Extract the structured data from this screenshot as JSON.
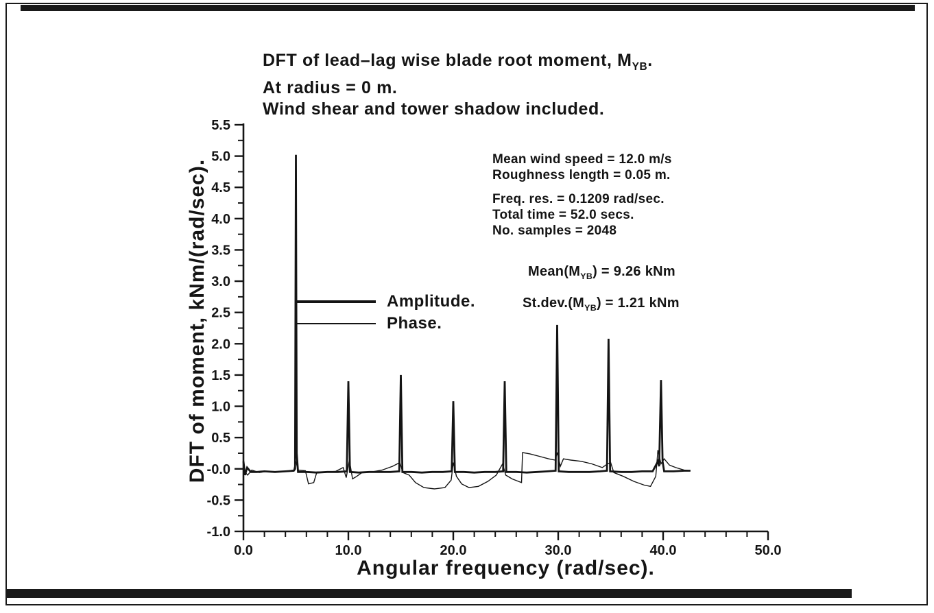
{
  "header": {
    "title_pre": "DFT of lead–lag wise blade root moment, M",
    "title_sub": "YB",
    "title_post": ".",
    "line2": "At radius = 0 m.",
    "line3": "Wind shear and tower shadow included."
  },
  "info": {
    "wind_speed": "Mean wind speed = 12.0 m/s",
    "roughness": "Roughness length = 0.05 m.",
    "freq_res": "Freq. res. = 0.1209 rad/sec.",
    "total_time": "Total time = 52.0 secs.",
    "samples": "No. samples = 2048"
  },
  "stats": {
    "mean_pre": "Mean(M",
    "mean_sub": "YB",
    "mean_post": ") = 9.26 kNm",
    "stdev_pre": "St.dev.(M",
    "stdev_sub": "YB",
    "stdev_post": ") = 1.21 kNm"
  },
  "chart_data": {
    "type": "line",
    "title": "DFT of lead–lag wise blade root moment, M_YB. At radius = 0 m. Wind shear and tower shadow included.",
    "xlabel": "Angular frequency (rad/sec).",
    "ylabel": "DFT of moment, kNm/(rad/sec).",
    "xlim": [
      0,
      50
    ],
    "ylim": [
      -1.0,
      5.5
    ],
    "grid": false,
    "legend_position": "inside-upper-left",
    "x_tick_values": [
      0,
      10,
      20,
      30,
      40,
      50
    ],
    "x_tick_labels": [
      "0.0",
      "10.0",
      "20.0",
      "30.0",
      "40.0",
      "50.0"
    ],
    "x_minor_step": 2,
    "y_tick_values": [
      5.5,
      5.0,
      4.5,
      4.0,
      3.5,
      3.0,
      2.5,
      2.0,
      1.5,
      1.0,
      0.5,
      0.0,
      -0.5,
      -1.0
    ],
    "y_tick_labels": [
      "5.5",
      "5.0",
      "4.5",
      "4.0",
      "3.5",
      "3.0",
      "2.5",
      "2.0",
      "1.5",
      "1.0",
      "0.5",
      "-0.0",
      "-0.5",
      "-1.0"
    ],
    "y_minor_step": 0.25,
    "amplitude_peaks": [
      [
        5.0,
        5.0
      ],
      [
        10.0,
        1.4
      ],
      [
        15.0,
        1.5
      ],
      [
        20.0,
        1.1
      ],
      [
        24.9,
        1.4
      ],
      [
        29.9,
        2.3
      ],
      [
        34.8,
        2.1
      ],
      [
        39.8,
        1.4
      ]
    ],
    "series": [
      {
        "key": "amplitude",
        "name": "Amplitude.",
        "color": "#141414",
        "stroke_width": 2.8,
        "points": [
          [
            0,
            0.12
          ],
          [
            0.15,
            -0.1
          ],
          [
            0.35,
            0.02
          ],
          [
            0.7,
            -0.05
          ],
          [
            1.3,
            -0.05
          ],
          [
            2,
            -0.04
          ],
          [
            3,
            -0.05
          ],
          [
            4,
            -0.04
          ],
          [
            4.8,
            -0.03
          ],
          [
            4.92,
            0.0
          ],
          [
            5.0,
            5.02
          ],
          [
            5.08,
            0.25
          ],
          [
            5.2,
            -0.05
          ],
          [
            6,
            -0.05
          ],
          [
            7,
            -0.06
          ],
          [
            8,
            -0.05
          ],
          [
            9,
            -0.05
          ],
          [
            9.85,
            -0.04
          ],
          [
            10.0,
            1.4
          ],
          [
            10.15,
            -0.05
          ],
          [
            11,
            -0.06
          ],
          [
            12,
            -0.05
          ],
          [
            13,
            -0.05
          ],
          [
            14,
            -0.05
          ],
          [
            14.85,
            -0.04
          ],
          [
            15.0,
            1.5
          ],
          [
            15.15,
            -0.05
          ],
          [
            16,
            -0.05
          ],
          [
            17,
            -0.06
          ],
          [
            18,
            -0.05
          ],
          [
            19,
            -0.05
          ],
          [
            19.85,
            -0.04
          ],
          [
            20.0,
            1.08
          ],
          [
            20.15,
            -0.05
          ],
          [
            21,
            -0.05
          ],
          [
            22,
            -0.06
          ],
          [
            23,
            -0.05
          ],
          [
            24,
            -0.05
          ],
          [
            24.75,
            -0.04
          ],
          [
            24.9,
            1.4
          ],
          [
            25.05,
            -0.05
          ],
          [
            26,
            -0.05
          ],
          [
            27,
            -0.06
          ],
          [
            28,
            -0.05
          ],
          [
            29,
            -0.04
          ],
          [
            29.75,
            -0.03
          ],
          [
            29.9,
            2.3
          ],
          [
            30.05,
            -0.04
          ],
          [
            31,
            -0.05
          ],
          [
            32,
            -0.05
          ],
          [
            33,
            -0.05
          ],
          [
            34,
            -0.04
          ],
          [
            34.65,
            -0.03
          ],
          [
            34.8,
            2.08
          ],
          [
            34.95,
            -0.04
          ],
          [
            36,
            -0.05
          ],
          [
            37,
            -0.05
          ],
          [
            38,
            -0.04
          ],
          [
            39,
            -0.04
          ],
          [
            39.5,
            0.12
          ],
          [
            39.62,
            0.04
          ],
          [
            39.8,
            1.42
          ],
          [
            39.95,
            0.12
          ],
          [
            40.1,
            -0.04
          ],
          [
            41,
            -0.04
          ],
          [
            42,
            -0.03
          ],
          [
            42.6,
            -0.03
          ]
        ]
      },
      {
        "key": "phase",
        "name": "Phase.",
        "color": "#141414",
        "stroke_width": 1.4,
        "points": [
          [
            0,
            -0.02
          ],
          [
            0.4,
            -0.1
          ],
          [
            0.8,
            -0.02
          ],
          [
            1.5,
            -0.06
          ],
          [
            2.2,
            -0.04
          ],
          [
            3,
            -0.05
          ],
          [
            4,
            -0.04
          ],
          [
            4.8,
            -0.02
          ],
          [
            5.0,
            0.12
          ],
          [
            5.2,
            -0.02
          ],
          [
            5.9,
            -0.03
          ],
          [
            6.2,
            -0.24
          ],
          [
            6.7,
            -0.22
          ],
          [
            7.0,
            -0.05
          ],
          [
            7.8,
            -0.05
          ],
          [
            8.8,
            -0.04
          ],
          [
            9.5,
            0.02
          ],
          [
            9.8,
            -0.14
          ],
          [
            10.1,
            0.14
          ],
          [
            10.4,
            -0.16
          ],
          [
            10.8,
            -0.12
          ],
          [
            11.3,
            -0.06
          ],
          [
            12.2,
            -0.05
          ],
          [
            13.2,
            -0.02
          ],
          [
            14.2,
            0.04
          ],
          [
            14.9,
            0.1
          ],
          [
            15.2,
            -0.06
          ],
          [
            15.8,
            -0.1
          ],
          [
            16.4,
            -0.22
          ],
          [
            17.2,
            -0.3
          ],
          [
            18.2,
            -0.32
          ],
          [
            19.2,
            -0.3
          ],
          [
            19.8,
            -0.18
          ],
          [
            20.0,
            0.1
          ],
          [
            20.3,
            -0.12
          ],
          [
            20.8,
            -0.24
          ],
          [
            21.5,
            -0.3
          ],
          [
            22.4,
            -0.28
          ],
          [
            23.3,
            -0.2
          ],
          [
            24.1,
            -0.1
          ],
          [
            24.7,
            0.08
          ],
          [
            25.0,
            -0.1
          ],
          [
            25.6,
            -0.16
          ],
          [
            26.2,
            -0.2
          ],
          [
            26.5,
            -0.22
          ],
          [
            26.6,
            0.26
          ],
          [
            27.3,
            0.24
          ],
          [
            28.2,
            0.2
          ],
          [
            29.1,
            0.16
          ],
          [
            29.7,
            0.14
          ],
          [
            29.9,
            0.26
          ],
          [
            30.2,
            0.04
          ],
          [
            30.5,
            0.16
          ],
          [
            31.2,
            0.14
          ],
          [
            32.2,
            0.12
          ],
          [
            33.2,
            0.08
          ],
          [
            34.2,
            0.02
          ],
          [
            34.7,
            0.08
          ],
          [
            35.0,
            0.1
          ],
          [
            35.3,
            -0.06
          ],
          [
            36.2,
            -0.12
          ],
          [
            37.2,
            -0.2
          ],
          [
            38.2,
            -0.26
          ],
          [
            38.8,
            -0.28
          ],
          [
            39.3,
            -0.12
          ],
          [
            39.5,
            0.3
          ],
          [
            39.8,
            0.08
          ],
          [
            40.1,
            0.16
          ],
          [
            40.6,
            0.06
          ],
          [
            41.2,
            0.02
          ],
          [
            42.0,
            -0.02
          ],
          [
            42.6,
            -0.03
          ]
        ]
      }
    ]
  }
}
